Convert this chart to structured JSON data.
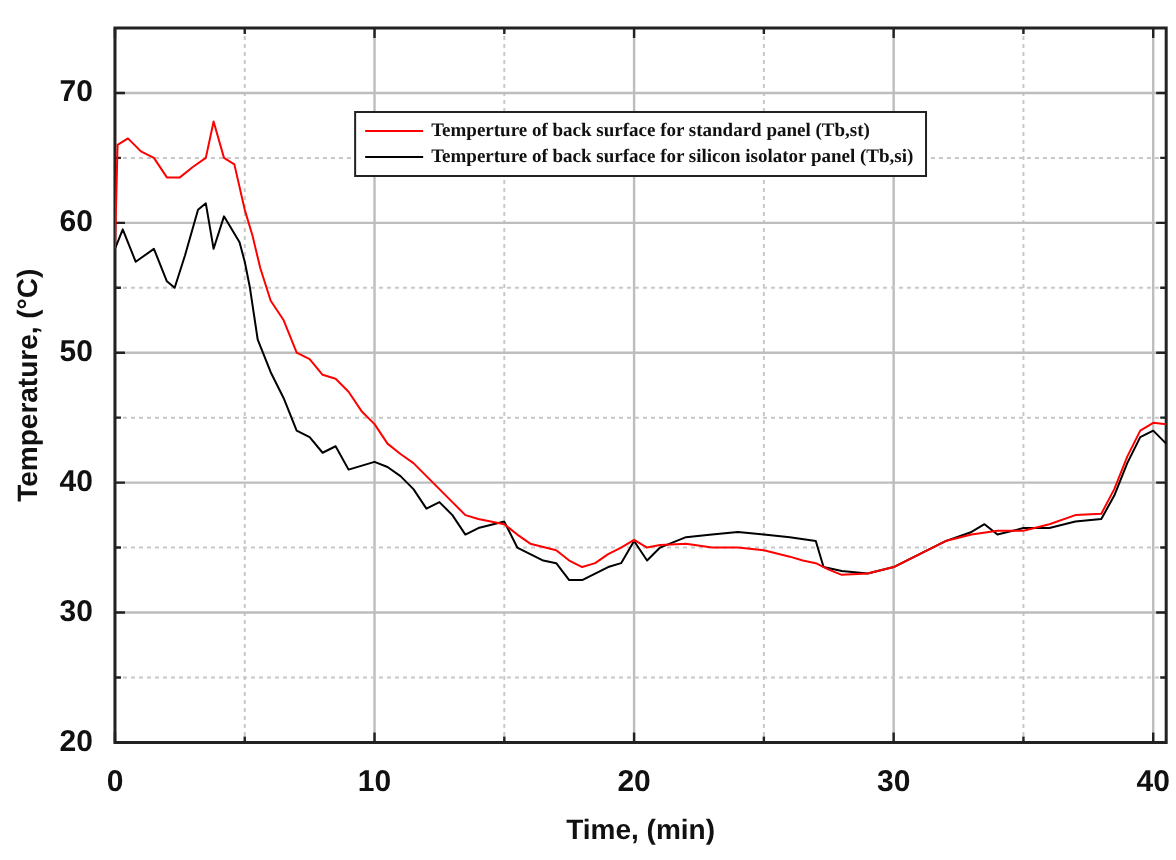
{
  "chart_data": {
    "type": "line",
    "xlabel": "Time, (min)",
    "ylabel": "Temperature, (°C)",
    "xlim": [
      0,
      40.5
    ],
    "ylim": [
      20,
      75
    ],
    "xticks": [
      0,
      {
        "value": 5,
        "label": null
      },
      10,
      {
        "value": 15,
        "label": null
      },
      20,
      {
        "value": 25,
        "label": null
      },
      30,
      {
        "value": 35,
        "label": null
      },
      40
    ],
    "yticks": [
      20,
      {
        "value": 25,
        "label": null
      },
      30,
      {
        "value": 35,
        "label": null
      },
      40,
      {
        "value": 45,
        "label": null
      },
      50,
      {
        "value": 55,
        "label": null
      },
      60,
      {
        "value": 65,
        "label": null
      },
      70
    ],
    "grid": true,
    "legend": "top",
    "marker": "none",
    "line_style": "solid",
    "series": [
      {
        "name": "Temperture of back surface for standard panel (Tb,st)",
        "color": "#ff0000",
        "x": [
          0,
          0.1,
          0.5,
          1,
          1.5,
          2,
          2.5,
          3,
          3.5,
          3.8,
          4.2,
          4.6,
          5,
          5.3,
          5.6,
          6,
          6.5,
          7,
          7.5,
          8,
          8.5,
          9,
          9.5,
          10,
          10.5,
          11,
          11.5,
          12,
          12.5,
          13,
          13.5,
          14,
          15,
          15.5,
          16,
          17,
          17.5,
          18,
          18.5,
          19,
          19.5,
          20,
          20.5,
          21,
          22,
          23,
          24,
          25,
          26,
          26.5,
          27,
          27.5,
          28,
          29,
          30,
          31,
          32,
          33,
          34,
          35,
          36,
          37,
          38,
          38.5,
          39,
          39.5,
          40,
          40.5
        ],
        "values": [
          58,
          66,
          66.5,
          65.5,
          65,
          63.5,
          63.5,
          64.3,
          65,
          67.8,
          65,
          64.5,
          61,
          59,
          56.5,
          54,
          52.5,
          50,
          49.5,
          48.3,
          48,
          47,
          45.5,
          44.5,
          43,
          42.2,
          41.5,
          40.5,
          39.5,
          38.5,
          37.5,
          37.2,
          36.8,
          36,
          35.3,
          34.8,
          34,
          33.5,
          33.8,
          34.5,
          35,
          35.6,
          35,
          35.2,
          35.3,
          35,
          35,
          34.8,
          34.3,
          34,
          33.8,
          33.3,
          32.9,
          33,
          33.5,
          34.5,
          35.5,
          36,
          36.3,
          36.3,
          36.8,
          37.5,
          37.6,
          39.5,
          42,
          44,
          44.6,
          44.5
        ]
      },
      {
        "name": "Temperture of back surface for silicon isolator panel (Tb,si)",
        "color": "#000000",
        "x": [
          0,
          0.3,
          0.8,
          1.5,
          2,
          2.3,
          2.7,
          3.2,
          3.5,
          3.8,
          4.2,
          4.8,
          5,
          5.2,
          5.5,
          6,
          6.5,
          7,
          7.5,
          8,
          8.5,
          9,
          10,
          10.5,
          11,
          11.5,
          12,
          12.5,
          13,
          13.5,
          14,
          15,
          15.5,
          16,
          16.5,
          17,
          17.5,
          18,
          18.5,
          19,
          19.5,
          20,
          20.5,
          21,
          22,
          23,
          24,
          25,
          26,
          27,
          27.3,
          28,
          29,
          30,
          31,
          32,
          33,
          33.5,
          34,
          35,
          36,
          37,
          38,
          38.5,
          39,
          39.5,
          40,
          40.5
        ],
        "values": [
          58,
          59.5,
          57,
          58,
          55.5,
          55,
          57.5,
          61,
          61.5,
          58,
          60.5,
          58.5,
          57,
          55,
          51,
          48.5,
          46.5,
          44,
          43.5,
          42.3,
          42.8,
          41,
          41.6,
          41.2,
          40.5,
          39.5,
          38,
          38.5,
          37.5,
          36,
          36.5,
          37,
          35,
          34.5,
          34,
          33.8,
          32.5,
          32.5,
          33,
          33.5,
          33.8,
          35.5,
          34,
          35,
          35.8,
          36,
          36.2,
          36,
          35.8,
          35.5,
          33.5,
          33.2,
          33,
          33.5,
          34.5,
          35.5,
          36.2,
          36.8,
          36,
          36.5,
          36.5,
          37,
          37.2,
          39,
          41.5,
          43.5,
          44,
          43
        ]
      }
    ]
  }
}
